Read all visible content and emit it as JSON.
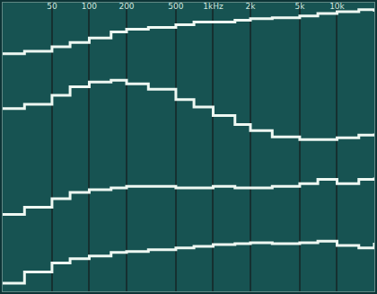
{
  "chart_data": {
    "type": "line",
    "log": "x",
    "grid": true,
    "tick_labels": "x",
    "color": "#eef8f2",
    "xlim": [
      20,
      20000
    ],
    "xticks": [
      50,
      100,
      200,
      500,
      {
        "value": 1000,
        "label": "1kHz"
      },
      {
        "value": 2000,
        "label": "2k"
      },
      {
        "value": 5000,
        "label": "5k"
      },
      {
        "value": 10000,
        "label": "10k"
      }
    ],
    "ylim": [
      0,
      100
    ],
    "x": [
      20,
      30,
      50,
      70,
      100,
      150,
      200,
      300,
      500,
      700,
      1000,
      1500,
      2000,
      3000,
      5000,
      7000,
      10000,
      15000,
      20000
    ],
    "series": [
      {
        "values": [
          82.3,
          83.2,
          84.7,
          86.2,
          87.8,
          89.9,
          90.8,
          91.4,
          92.4,
          93.3,
          93.3,
          93.9,
          94.5,
          94.8,
          95.4,
          96.3,
          96.9,
          97.6,
          96.9
        ]
      },
      {
        "values": [
          63.3,
          64.8,
          67.9,
          70.9,
          72.5,
          73.1,
          71.9,
          70.0,
          66.4,
          63.9,
          60.9,
          57.8,
          55.7,
          53.5,
          52.6,
          52.6,
          53.2,
          54.1,
          54.7
        ]
      },
      {
        "values": [
          26.6,
          29.1,
          32.1,
          34.3,
          35.2,
          35.8,
          36.4,
          36.4,
          35.8,
          35.8,
          36.4,
          35.8,
          35.8,
          36.4,
          37.3,
          38.8,
          37.3,
          38.8,
          39.4
        ]
      },
      {
        "values": [
          2.8,
          6.7,
          9.8,
          11.3,
          12.2,
          13.5,
          13.8,
          14.4,
          15.0,
          15.6,
          16.2,
          16.5,
          16.8,
          16.5,
          16.8,
          17.4,
          15.9,
          15.0,
          16.8
        ]
      }
    ]
  }
}
